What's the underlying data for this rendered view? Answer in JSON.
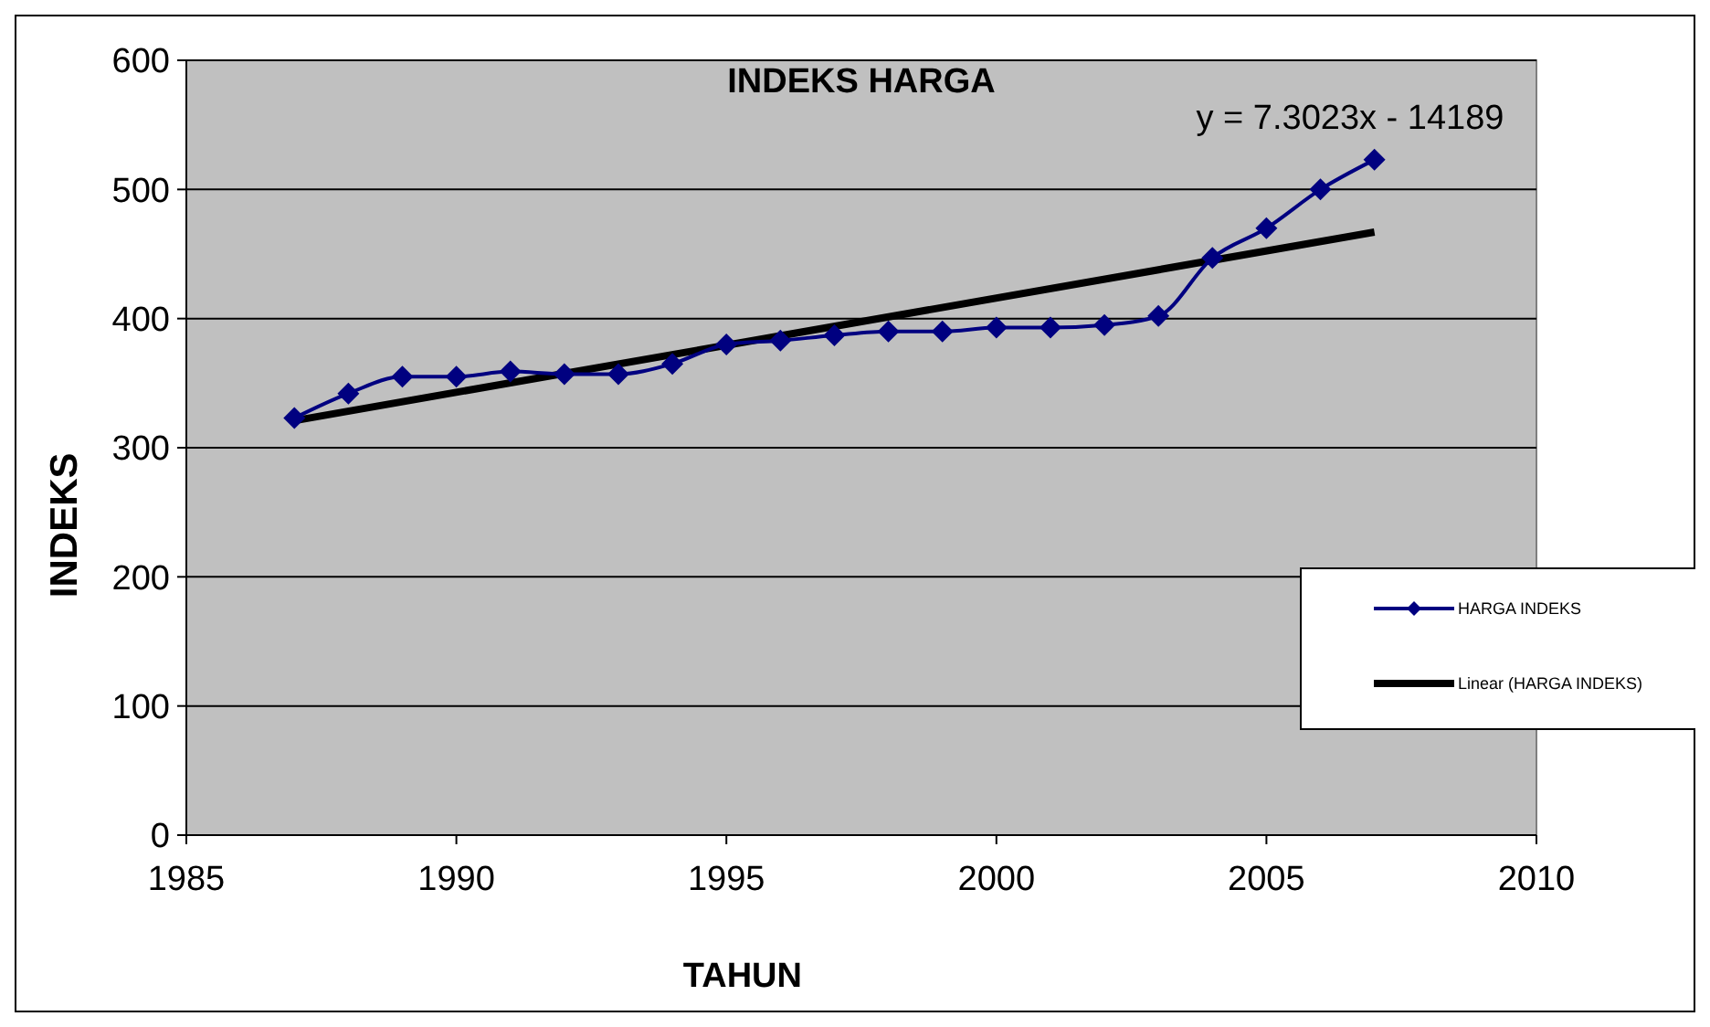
{
  "chart_data": {
    "type": "line",
    "title": "INDEKS HARGA",
    "xlabel": "TAHUN",
    "ylabel": "INDEKS",
    "annotations": [
      "y = 7.3023x - 14189"
    ],
    "x": [
      1987,
      1988,
      1989,
      1990,
      1991,
      1992,
      1993,
      1994,
      1995,
      1996,
      1997,
      1998,
      1999,
      2000,
      2001,
      2002,
      2003,
      2004,
      2005,
      2006,
      2007
    ],
    "series": [
      {
        "name": "HARGA INDEKS",
        "color": "#000080",
        "marker": "diamond",
        "values": [
          323,
          342,
          355,
          355,
          359,
          357,
          357,
          365,
          380,
          383,
          387,
          390,
          390,
          393,
          393,
          395,
          402,
          447,
          470,
          500,
          523
        ]
      },
      {
        "name": "Linear (HARGA INDEKS)",
        "color": "#000000",
        "marker": "none",
        "x": [
          1987,
          2007
        ],
        "values": [
          321,
          467
        ]
      }
    ],
    "xlim": [
      1985,
      2010
    ],
    "xticks": [
      1985,
      1990,
      1995,
      2000,
      2005,
      2010
    ],
    "ylim": [
      0,
      600
    ],
    "yticks": [
      0,
      100,
      200,
      300,
      400,
      500,
      600
    ],
    "grid": "y",
    "legend": "right"
  }
}
